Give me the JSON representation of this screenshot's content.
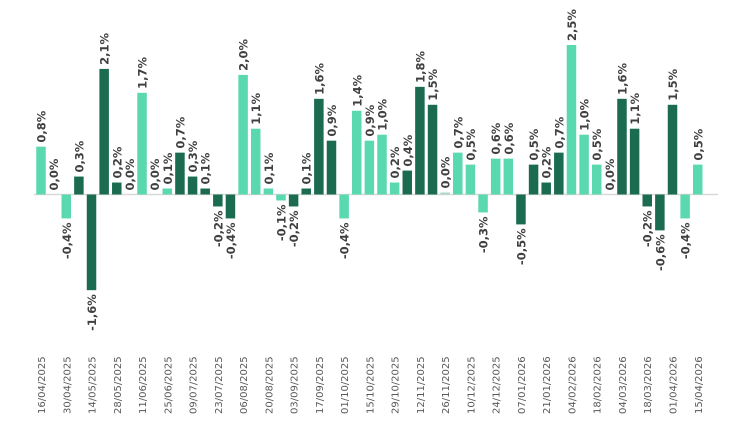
{
  "chart_data": {
    "type": "bar",
    "title": "",
    "xlabel": "",
    "ylabel": "",
    "ylim": [
      -1.6,
      2.5
    ],
    "grid": false,
    "legend": "none",
    "value_format": "percent, comma decimal",
    "colors": {
      "light": "#5ad8b0",
      "dark": "#1b6b50",
      "neutral": "#a9d9c6",
      "axis": "#d9d9d9"
    },
    "values": [
      0.8,
      0.0,
      -0.4,
      0.3,
      -1.6,
      2.1,
      0.2,
      0.0,
      1.7,
      0.0,
      0.1,
      0.7,
      0.3,
      0.1,
      -0.2,
      -0.4,
      2.0,
      1.1,
      0.1,
      -0.1,
      -0.2,
      0.1,
      1.6,
      0.9,
      -0.4,
      1.4,
      0.9,
      1.0,
      0.2,
      0.4,
      1.8,
      1.5,
      0.0,
      0.7,
      0.5,
      -0.3,
      0.6,
      0.6,
      -0.5,
      0.5,
      0.2,
      0.7,
      2.5,
      1.0,
      0.5,
      0.0,
      1.6,
      1.1,
      -0.2,
      -0.6,
      1.5,
      -0.4,
      0.5
    ],
    "data_labels": [
      "0,8%",
      "0,0%",
      "-0,4%",
      "0,3%",
      "-1,6%",
      "2,1%",
      "0,2%",
      "0,0%",
      "1,7%",
      "0,0%",
      "0,1%",
      "0,7%",
      "0,3%",
      "0,1%",
      "-0,2%",
      "-0,4%",
      "2,0%",
      "1,1%",
      "0,1%",
      "-0,1%",
      "-0,2%",
      "0,1%",
      "1,6%",
      "0,9%",
      "-0,4%",
      "1,4%",
      "0,9%",
      "1,0%",
      "0,2%",
      "0,4%",
      "1,8%",
      "1,5%",
      "0,0%",
      "0,7%",
      "0,5%",
      "-0,3%",
      "0,6%",
      "0,6%",
      "-0,5%",
      "0,5%",
      "0,2%",
      "0,7%",
      "2,5%",
      "1,0%",
      "0,5%",
      "0,0%",
      "1,6%",
      "1,1%",
      "-0,2%",
      "-0,6%",
      "1,5%",
      "-0,4%",
      "0,5%"
    ],
    "bar_colors": [
      "light",
      "light",
      "light",
      "dark",
      "dark",
      "dark",
      "dark",
      "dark",
      "light",
      "light",
      "light",
      "dark",
      "dark",
      "dark",
      "dark",
      "dark",
      "light",
      "light",
      "light",
      "light",
      "dark",
      "dark",
      "dark",
      "dark",
      "light",
      "light",
      "light",
      "light",
      "light",
      "dark",
      "dark",
      "dark",
      "neutral",
      "light",
      "light",
      "light",
      "light",
      "light",
      "dark",
      "dark",
      "dark",
      "dark",
      "light",
      "light",
      "light",
      "light",
      "dark",
      "dark",
      "dark",
      "dark",
      "dark",
      "light",
      "light"
    ],
    "tick_labels": [
      "16/04/2025",
      "30/04/2025",
      "14/05/2025",
      "28/05/2025",
      "11/06/2025",
      "25/06/2025",
      "09/07/2025",
      "23/07/2025",
      "06/08/2025",
      "20/08/2025",
      "03/09/2025",
      "17/09/2025",
      "01/10/2025",
      "15/10/2025",
      "29/10/2025",
      "12/11/2025",
      "26/11/2025",
      "10/12/2025",
      "24/12/2025",
      "07/01/2026",
      "21/01/2026",
      "04/02/2026",
      "18/02/2026",
      "04/03/2026",
      "18/03/2026",
      "01/04/2026",
      "15/04/2026"
    ],
    "tick_every_n_bars": 2
  }
}
